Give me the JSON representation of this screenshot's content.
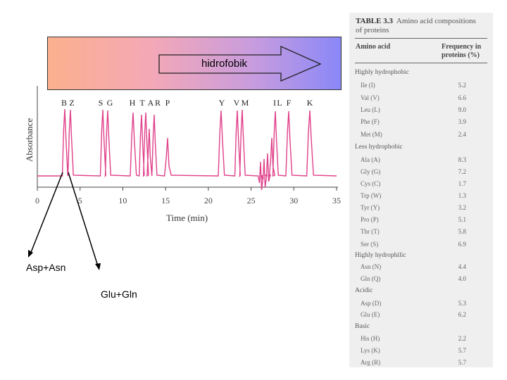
{
  "banner": {
    "label": "hidrofobik"
  },
  "chromatogram": {
    "peak_labels": [
      "B",
      "Z",
      "S",
      "G",
      "H",
      "T",
      "A",
      "R",
      "P",
      "Y",
      "V",
      "M",
      "I",
      "L",
      "F",
      "K"
    ],
    "y_axis_label": "Absorbance",
    "x_axis_label": "Time (min)",
    "x_ticks": [
      "0",
      "5",
      "10",
      "15",
      "20",
      "25",
      "30",
      "35"
    ],
    "line_color": "#e0408a"
  },
  "annotations": {
    "asp_asn": "Asp+Asn",
    "glu_gln": "Glu+Gln"
  },
  "table": {
    "label": "TABLE 3.3",
    "title_part1": "Amino acid compositions",
    "title_part2": "of proteins",
    "col_amino": "Amino acid",
    "col_freq_1": "Frequency in",
    "col_freq_2": "proteins (%)",
    "groups": [
      {
        "name": "Highly hydrophobic",
        "rows": [
          {
            "name": "Ile (I)",
            "value": "5.2"
          },
          {
            "name": "Val (V)",
            "value": "6.6"
          },
          {
            "name": "Leu (L)",
            "value": "9.0"
          },
          {
            "name": "Phe (F)",
            "value": "3.9"
          },
          {
            "name": "Met (M)",
            "value": "2.4"
          }
        ]
      },
      {
        "name": "Less hydrophobic",
        "rows": [
          {
            "name": "Ala (A)",
            "value": "8.3"
          },
          {
            "name": "Gly (G)",
            "value": "7.2"
          },
          {
            "name": "Cys (C)",
            "value": "1.7"
          },
          {
            "name": "Trp (W)",
            "value": "1.3"
          },
          {
            "name": "Tyr (Y)",
            "value": "3.2"
          },
          {
            "name": "Pro (P)",
            "value": "5.1"
          },
          {
            "name": "Thr (T)",
            "value": "5.8"
          },
          {
            "name": "Ser (S)",
            "value": "6.9"
          }
        ]
      },
      {
        "name": "Highly hydrophilic",
        "rows": [
          {
            "name": "Asn (N)",
            "value": "4.4"
          },
          {
            "name": "Gln (Q)",
            "value": "4.0"
          }
        ]
      },
      {
        "name": "Acidic",
        "rows": [
          {
            "name": "Asp (D)",
            "value": "5.3"
          },
          {
            "name": "Glu (E)",
            "value": "6.2"
          }
        ]
      },
      {
        "name": "Basic",
        "rows": [
          {
            "name": "His (H)",
            "value": "2.2"
          },
          {
            "name": "Lys (K)",
            "value": "5.7"
          },
          {
            "name": "Arg (R)",
            "value": "5.7"
          }
        ]
      }
    ]
  }
}
